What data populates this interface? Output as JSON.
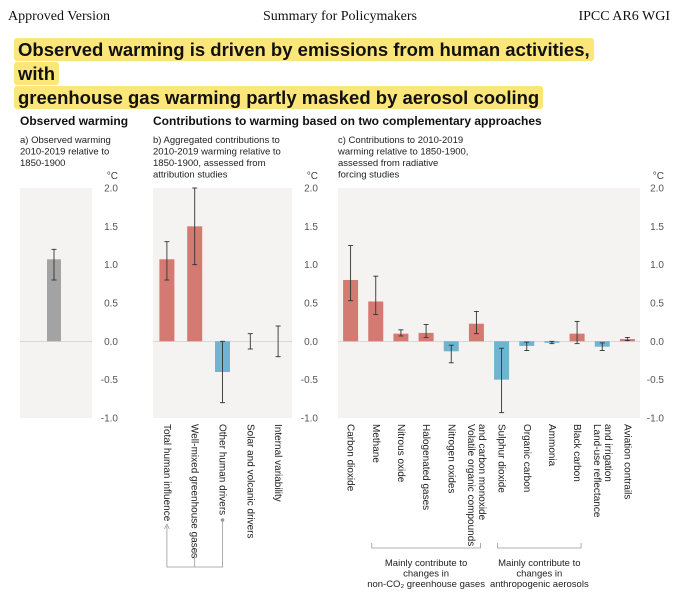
{
  "header": {
    "left": "Approved Version",
    "center": "Summary for Policymakers",
    "right": "IPCC AR6 WGI"
  },
  "headline": {
    "line1": "Observed warming is driven by emissions from human activities, with",
    "line2": "greenhouse gas warming partly masked by aerosol cooling"
  },
  "colors": {
    "warming": "#d47a72",
    "cooling": "#6fb5d2",
    "observed": "#a3a3a3",
    "panel_bg": "#f4f3f1"
  },
  "titles": {
    "observed": "Observed warming",
    "contributions": "Contributions to warming based on two complementary approaches"
  },
  "chart_data": [
    {
      "type": "bar",
      "panel": "a",
      "subtitle": [
        "a) Observed warming",
        "2010-2019 relative to",
        "1850-1900"
      ],
      "ylabel": "°C",
      "ylim": [
        -1.0,
        2.0
      ],
      "yticks": [
        "2.0",
        "1.5",
        "1.0",
        "0.5",
        "0.0",
        "-0.5",
        "-1.0"
      ],
      "categories": [
        ""
      ],
      "values": [
        1.07
      ],
      "error_low": [
        0.8
      ],
      "error_high": [
        1.2
      ],
      "kinds": [
        "observed"
      ]
    },
    {
      "type": "bar",
      "panel": "b",
      "subtitle": [
        "b) Aggregated contributions to",
        "2010-2019 warming relative to",
        "1850-1900, assessed from",
        "attribution studies"
      ],
      "ylabel": "°C",
      "ylim": [
        -1.0,
        2.0
      ],
      "yticks": [
        "2.0",
        "1.5",
        "1.0",
        "0.5",
        "0.0",
        "-0.5",
        "-1.0"
      ],
      "categories": [
        "Total human influence",
        "Well-mixed greenhouse gases",
        "Other human drivers",
        "Solar and volcanic drivers",
        "Internal variability"
      ],
      "values": [
        1.07,
        1.5,
        -0.4,
        0.0,
        0.0
      ],
      "error_low": [
        0.8,
        1.0,
        -0.8,
        -0.1,
        -0.2
      ],
      "error_high": [
        1.3,
        2.0,
        0.0,
        0.1,
        0.2
      ],
      "kinds": [
        "warming",
        "warming",
        "cooling",
        "none",
        "none"
      ]
    },
    {
      "type": "bar",
      "panel": "c",
      "subtitle": [
        "c) Contributions to 2010-2019",
        "warming relative to 1850-1900,",
        "assessed from radiative",
        "forcing studies"
      ],
      "ylabel": "°C",
      "ylim": [
        -1.0,
        2.0
      ],
      "yticks": [
        "2.0",
        "1.5",
        "1.0",
        "0.5",
        "0.0",
        "-0.5",
        "-1.0"
      ],
      "categories": [
        "Carbon dioxide",
        "Methane",
        "Nitrous oxide",
        "Halogenated gases",
        "Nitrogen oxides",
        "Volatile organic compounds and carbon monoxide",
        "Sulphur dioxide",
        "Organic carbon",
        "Ammonia",
        "Black carbon",
        "Land-use reflectance and irrigation",
        "Aviation contrails"
      ],
      "category_lines": [
        [
          "Carbon dioxide"
        ],
        [
          "Methane"
        ],
        [
          "Nitrous oxide"
        ],
        [
          "Halogenated gases"
        ],
        [
          "Nitrogen oxides"
        ],
        [
          "Volatile organic compounds",
          "and carbon monoxide"
        ],
        [
          "Sulphur dioxide"
        ],
        [
          "Organic carbon"
        ],
        [
          "Ammonia"
        ],
        [
          "Black carbon"
        ],
        [
          "Land-use reflectance",
          "and irrigation"
        ],
        [
          "Aviation contrails"
        ]
      ],
      "values": [
        0.8,
        0.52,
        0.1,
        0.11,
        -0.13,
        0.23,
        -0.5,
        -0.06,
        -0.02,
        0.1,
        -0.07,
        0.03
      ],
      "error_low": [
        0.53,
        0.35,
        0.07,
        0.05,
        -0.28,
        0.1,
        -0.93,
        -0.12,
        -0.03,
        -0.03,
        -0.12,
        0.01
      ],
      "error_high": [
        1.25,
        0.85,
        0.15,
        0.22,
        -0.05,
        0.39,
        -0.09,
        -0.01,
        0.0,
        0.26,
        -0.02,
        0.05
      ],
      "kinds": [
        "warming",
        "warming",
        "warming",
        "warming",
        "cooling",
        "warming",
        "cooling",
        "cooling",
        "cooling",
        "warming",
        "cooling",
        "warming"
      ],
      "groups": [
        {
          "lines": [
            "Mainly contribute to",
            "changes in",
            "non-CO₂ greenhouse gases"
          ],
          "from": 1,
          "to": 5
        },
        {
          "lines": [
            "Mainly contribute to",
            "changes in",
            "anthropogenic aerosols"
          ],
          "from": 6,
          "to": 9
        }
      ]
    }
  ]
}
